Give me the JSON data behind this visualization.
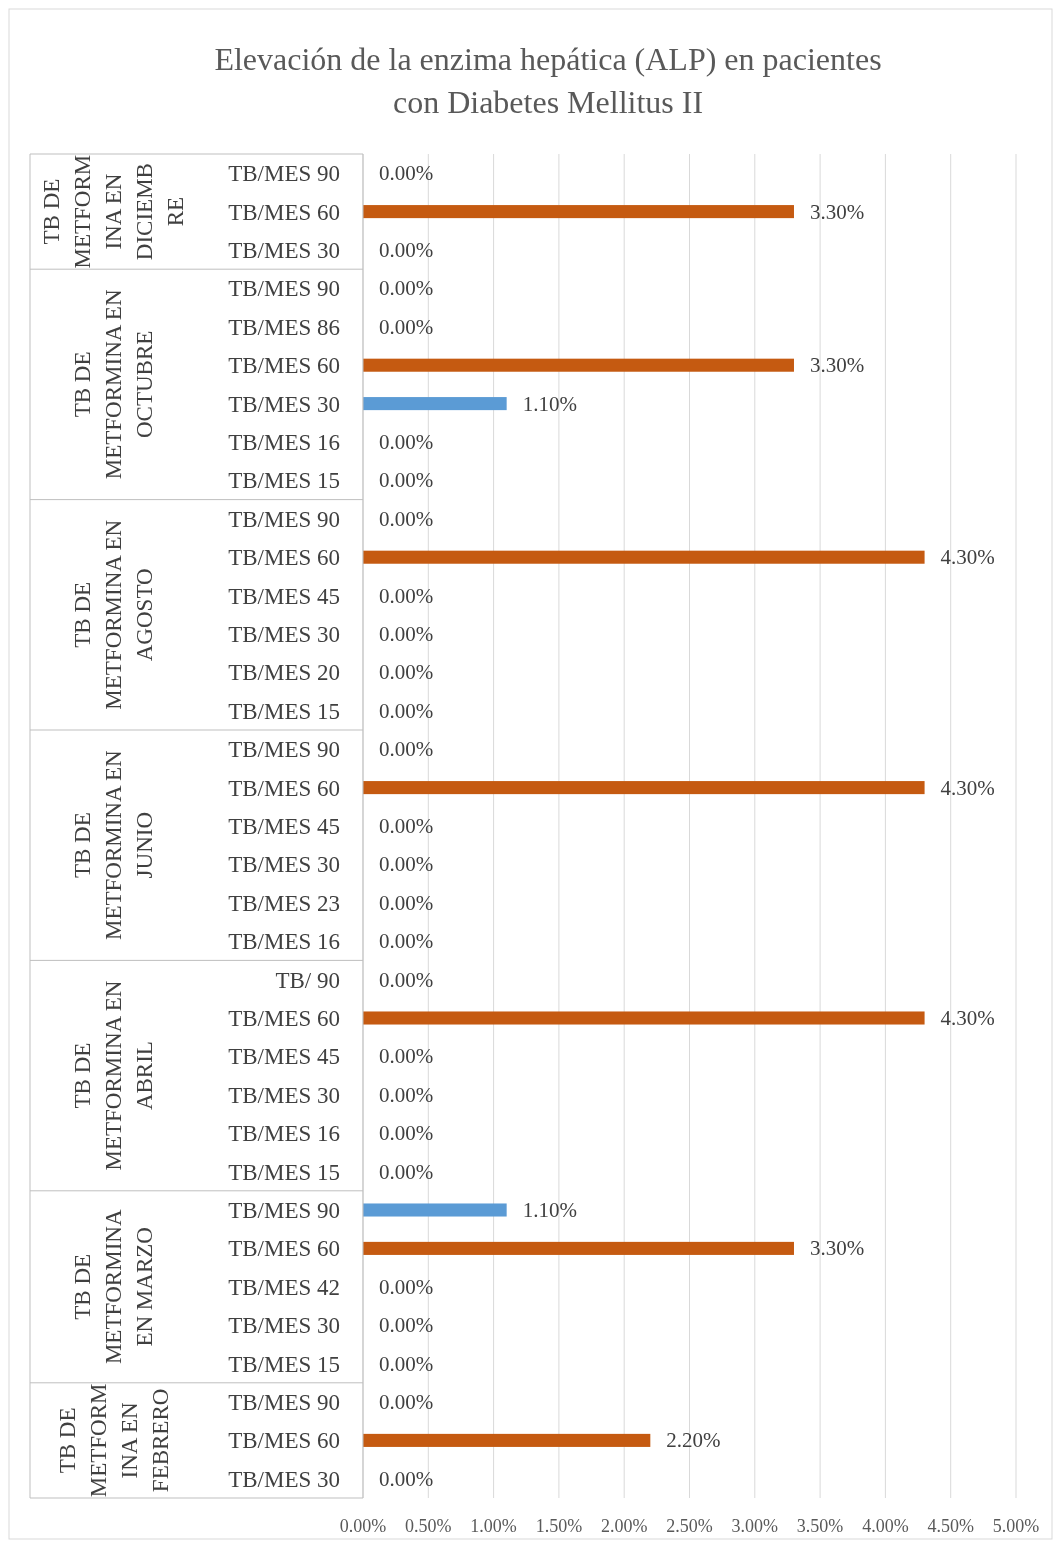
{
  "chart_data": {
    "type": "bar",
    "orientation": "horizontal",
    "title": "Elevación  de la enzima hepática (ALP) en pacientes con  Diabetes Mellitus II",
    "categories": [
      "TB/MES 90",
      "TB/MES 60",
      "TB/MES 30",
      "TB/MES 90",
      "TB/MES 86",
      "TB/MES 60",
      "TB/MES 30",
      "TB/MES 16",
      "TB/MES 15",
      "TB/MES 90",
      "TB/MES 60",
      "TB/MES 45",
      "TB/MES 30",
      "TB/MES 20",
      "TB/MES 15",
      "TB/MES 90",
      "TB/MES 60",
      "TB/MES 45",
      "TB/MES 30",
      "TB/MES 23",
      "TB/MES 16",
      "TB/ 90",
      "TB/MES 60",
      "TB/MES 45",
      "TB/MES 30",
      "TB/MES 16",
      "TB/MES 15",
      "TB/MES 90",
      "TB/MES 60",
      "TB/MES 42",
      "TB/MES 30",
      "TB/MES 15",
      "TB/MES 90",
      "TB/MES 60",
      "TB/MES 30"
    ],
    "values": [
      0,
      3.3,
      0,
      0,
      0,
      3.3,
      1.1,
      0,
      0,
      0,
      4.3,
      0,
      0,
      0,
      0,
      0,
      4.3,
      0,
      0,
      0,
      0,
      0,
      4.3,
      0,
      0,
      0,
      0,
      1.1,
      3.3,
      0,
      0,
      0,
      0,
      2.2,
      0
    ],
    "colors": [
      "#c55a11",
      "#c55a11",
      "#c55a11",
      "#c55a11",
      "#c55a11",
      "#c55a11",
      "#5b9bd5",
      "#c55a11",
      "#c55a11",
      "#c55a11",
      "#c55a11",
      "#c55a11",
      "#c55a11",
      "#c55a11",
      "#c55a11",
      "#c55a11",
      "#c55a11",
      "#c55a11",
      "#c55a11",
      "#c55a11",
      "#c55a11",
      "#c55a11",
      "#c55a11",
      "#c55a11",
      "#c55a11",
      "#c55a11",
      "#c55a11",
      "#5b9bd5",
      "#c55a11",
      "#c55a11",
      "#c55a11",
      "#c55a11",
      "#c55a11",
      "#c55a11",
      "#c55a11"
    ],
    "value_labels": [
      "0.00%",
      "3.30%",
      "0.00%",
      "0.00%",
      "0.00%",
      "3.30%",
      "1.10%",
      "0.00%",
      "0.00%",
      "0.00%",
      "4.30%",
      "0.00%",
      "0.00%",
      "0.00%",
      "0.00%",
      "0.00%",
      "4.30%",
      "0.00%",
      "0.00%",
      "0.00%",
      "0.00%",
      "0.00%",
      "4.30%",
      "0.00%",
      "0.00%",
      "0.00%",
      "0.00%",
      "1.10%",
      "3.30%",
      "0.00%",
      "0.00%",
      "0.00%",
      "0.00%",
      "2.20%",
      "0.00%"
    ],
    "annotations": [
      "TB DE METFORMINA EN DICIEMBRE",
      "TB DE METFORMINA EN OCTUBRE",
      "TB DE METFORMINA EN AGOSTO",
      "TB DE METFORMINA EN JUNIO",
      "TB DE METFORMINA EN ABRIL",
      "TB DE METFORMINA EN MARZO",
      "TB DE METFORMINA EN FEBRERO"
    ],
    "xlim": [
      0,
      5
    ],
    "xticks": [
      {
        "value": 0,
        "label": "0.00%"
      },
      {
        "value": 0.5,
        "label": "0.50%"
      },
      {
        "value": 1,
        "label": "1.00%"
      },
      {
        "value": 1.5,
        "label": "1.50%"
      },
      {
        "value": 2,
        "label": "2.00%"
      },
      {
        "value": 2.5,
        "label": "2.50%"
      },
      {
        "value": 3,
        "label": "3.00%"
      },
      {
        "value": 3.5,
        "label": "3.50%"
      },
      {
        "value": 4,
        "label": "4.00%"
      },
      {
        "value": 4.5,
        "label": "4.50%"
      },
      {
        "value": 5,
        "label": "5.00%"
      }
    ],
    "grid": "x"
  }
}
